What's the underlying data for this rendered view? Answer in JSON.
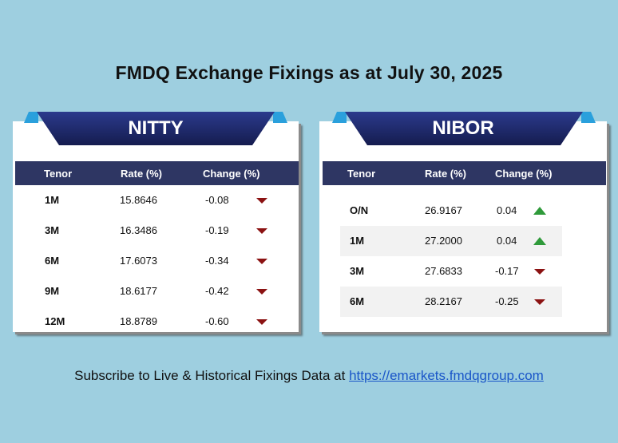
{
  "title": "FMDQ Exchange Fixings as at July 30, 2025",
  "colors": {
    "background": "#9ecfe0",
    "banner_dark": "#1f2a6b",
    "header_row": "#2e3663",
    "down_arrow": "#8b1212",
    "up_arrow": "#2f9a3a",
    "link": "#1a56c8"
  },
  "nitty": {
    "label": "NITTY",
    "headers": {
      "tenor": "Tenor",
      "rate": "Rate (%)",
      "change": "Change (%)"
    },
    "rows": [
      {
        "tenor": "1M",
        "rate": "15.8646",
        "change": "-0.08",
        "direction": "down"
      },
      {
        "tenor": "3M",
        "rate": "16.3486",
        "change": "-0.19",
        "direction": "down"
      },
      {
        "tenor": "6M",
        "rate": "17.6073",
        "change": "-0.34",
        "direction": "down"
      },
      {
        "tenor": "9M",
        "rate": "18.6177",
        "change": "-0.42",
        "direction": "down"
      },
      {
        "tenor": "12M",
        "rate": "18.8789",
        "change": "-0.60",
        "direction": "down"
      }
    ]
  },
  "nibor": {
    "label": "NIBOR",
    "headers": {
      "tenor": "Tenor",
      "rate": "Rate (%)",
      "change": "Change (%)"
    },
    "rows": [
      {
        "tenor": "O/N",
        "rate": "26.9167",
        "change": "0.04",
        "direction": "up"
      },
      {
        "tenor": "1M",
        "rate": "27.2000",
        "change": "0.04",
        "direction": "up"
      },
      {
        "tenor": "3M",
        "rate": "27.6833",
        "change": "-0.17",
        "direction": "down"
      },
      {
        "tenor": "6M",
        "rate": "28.2167",
        "change": "-0.25",
        "direction": "down"
      }
    ]
  },
  "footer": {
    "text": "Subscribe to Live & Historical Fixings Data at",
    "link": "https://emarkets.fmdqgroup.com"
  }
}
